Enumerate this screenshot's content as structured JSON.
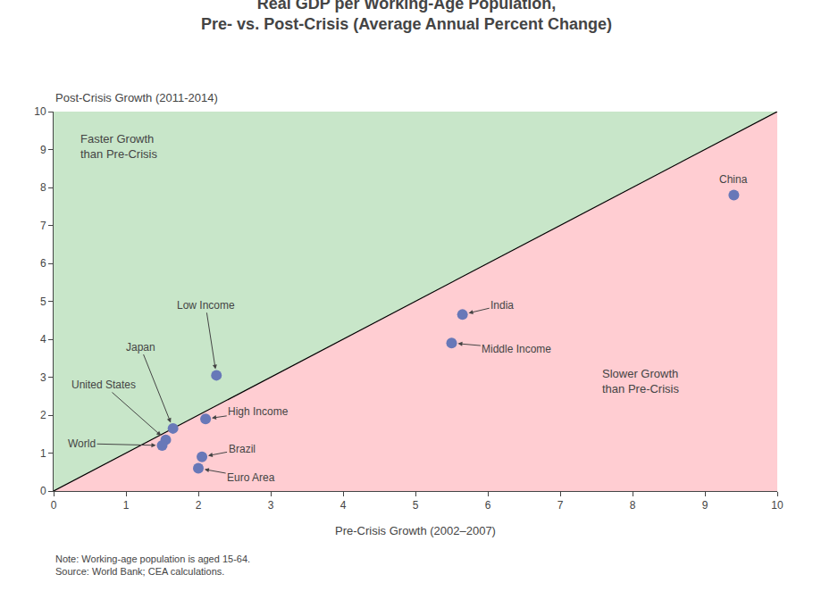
{
  "chart_data": {
    "type": "scatter",
    "title": "Real GDP per Working-Age Population,",
    "subtitle": "Pre- vs. Post-Crisis (Average Annual Percent Change)",
    "x_label": "Pre-Crisis Growth (2002–2007)",
    "y_label": "Post-Crisis Growth (2011-2014)",
    "labels": [
      "China",
      "India",
      "Middle Income",
      "Low Income",
      "Japan",
      "United States",
      "World",
      "High Income",
      "Brazil",
      "Euro Area"
    ],
    "x": [
      9.4,
      5.65,
      5.5,
      2.25,
      1.65,
      1.55,
      1.5,
      2.1,
      2.05,
      2.0
    ],
    "values": [
      7.8,
      4.65,
      3.9,
      3.05,
      1.65,
      1.35,
      1.2,
      1.9,
      0.9,
      0.6
    ],
    "color": "#6878b8",
    "regions": [
      {
        "label": "Faster Growth\nthan Pre-Crisis",
        "color": "#c8e6c9"
      },
      {
        "label": "Slower Growth\nthan Pre-Crisis",
        "color": "#ffcdd2"
      }
    ],
    "note": "Note: Working-age population is aged 15-64.\nSource: World Bank; CEA calculations.",
    "xlim": [
      0,
      10
    ],
    "ylim": [
      0,
      10
    ],
    "xticks": [
      0,
      1,
      2,
      3,
      4,
      5,
      6,
      7,
      8,
      9,
      10
    ],
    "yticks": [
      0,
      1,
      2,
      3,
      4,
      5,
      6,
      7,
      8,
      9,
      10
    ],
    "grid": false
  }
}
